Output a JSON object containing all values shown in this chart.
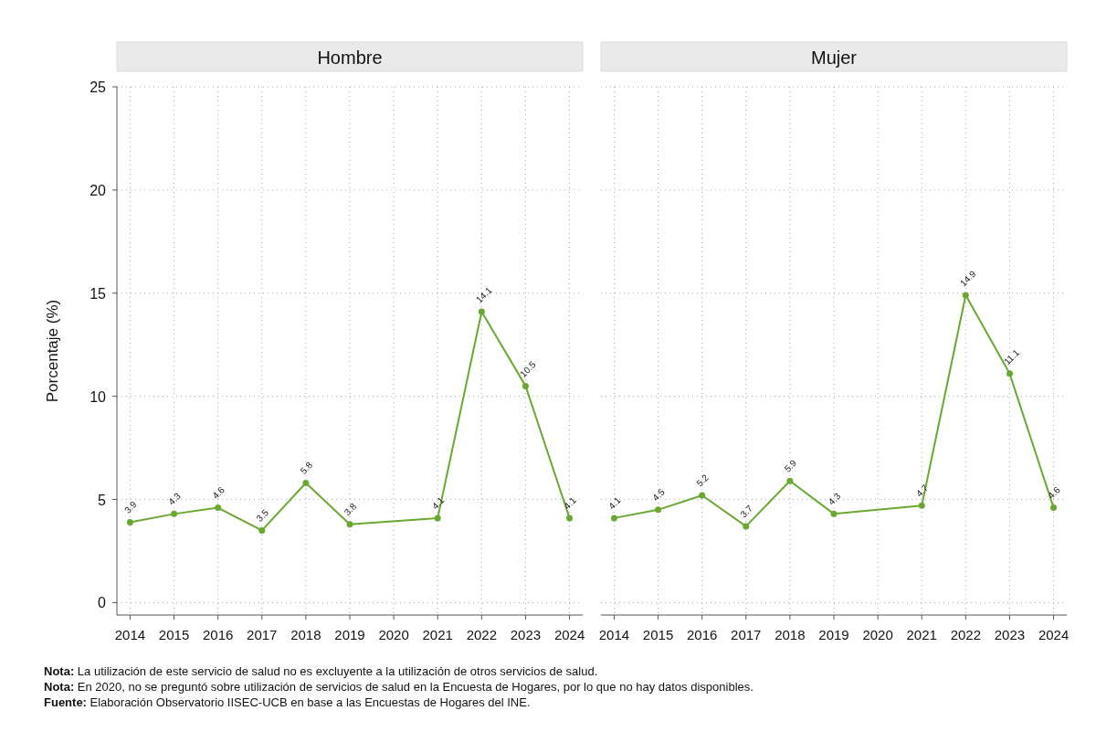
{
  "chart_data": [
    {
      "type": "line",
      "title": "Hombre",
      "ylabel": "Porcentaje (%)",
      "x": [
        2014,
        2015,
        2016,
        2017,
        2018,
        2019,
        2021,
        2022,
        2023,
        2024
      ],
      "series": [
        {
          "color": "#6aa832",
          "values": [
            3.9,
            4.3,
            4.6,
            3.5,
            5.8,
            3.8,
            4.1,
            14.1,
            10.5,
            4.1
          ]
        }
      ],
      "xlim": [
        2013.7,
        2024.3
      ],
      "xticks": [
        2014,
        2015,
        2016,
        2017,
        2018,
        2019,
        2020,
        2021,
        2022,
        2023,
        2024
      ],
      "ylim": [
        -0.6,
        25
      ],
      "yticks": [
        0,
        5,
        10,
        15,
        20,
        25
      ],
      "grid": true,
      "marker": "circle",
      "line_style": "solid",
      "data_labels": true,
      "annotations": [
        "Nota: La utilización de este servicio de salud no es excluyente a la utilización de otros servicios de salud.",
        "Nota: En 2020, no se preguntó sobre utilización de servicios de salud en la Encuesta de Hogares, por lo que no hay datos disponibles.",
        "Fuente: Elaboración Observatorio IISEC-UCB en base a las Encuestas de Hogares del INE."
      ]
    },
    {
      "type": "line",
      "title": "Mujer",
      "x": [
        2014,
        2015,
        2016,
        2017,
        2018,
        2019,
        2021,
        2022,
        2023,
        2024
      ],
      "series": [
        {
          "color": "#6aa832",
          "values": [
            4.1,
            4.5,
            5.2,
            3.7,
            5.9,
            4.3,
            4.7,
            14.9,
            11.1,
            4.6
          ]
        }
      ],
      "xlim": [
        2013.7,
        2024.3
      ],
      "xticks": [
        2014,
        2015,
        2016,
        2017,
        2018,
        2019,
        2020,
        2021,
        2022,
        2023,
        2024
      ],
      "ylim": [
        -0.6,
        25
      ],
      "yticks": [
        0,
        5,
        10,
        15,
        20,
        25
      ],
      "grid": true,
      "marker": "circle",
      "line_style": "solid",
      "data_labels": true,
      "tick_labels": "x"
    }
  ]
}
